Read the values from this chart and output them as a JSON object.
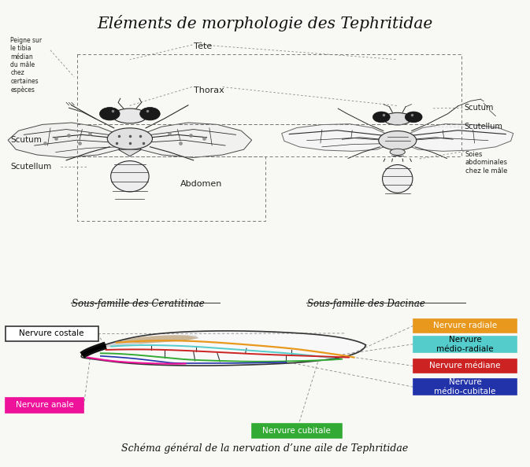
{
  "title": "Eléments de morphologie des Tephritidae",
  "subtitle_caption": "Schéma général de la nervation d’une aile de Tephritidae",
  "subfamily_left": "Sous-famille des Ceratitinae",
  "subfamily_right": "Sous-famille des Dacinae",
  "bg_color": "#f8f8f5",
  "wing_outline_color": "#333333",
  "costal_color": "#111111",
  "nervure_radiale_color": "#e8981c",
  "nervure_medioradiale_color": "#55cccc",
  "nervure_mediane_color": "#cc2222",
  "nervure_cubitale_color": "#33aa33",
  "nervure_mediocubitale_color": "#2233aa",
  "nervure_anale_color": "#ee1199"
}
